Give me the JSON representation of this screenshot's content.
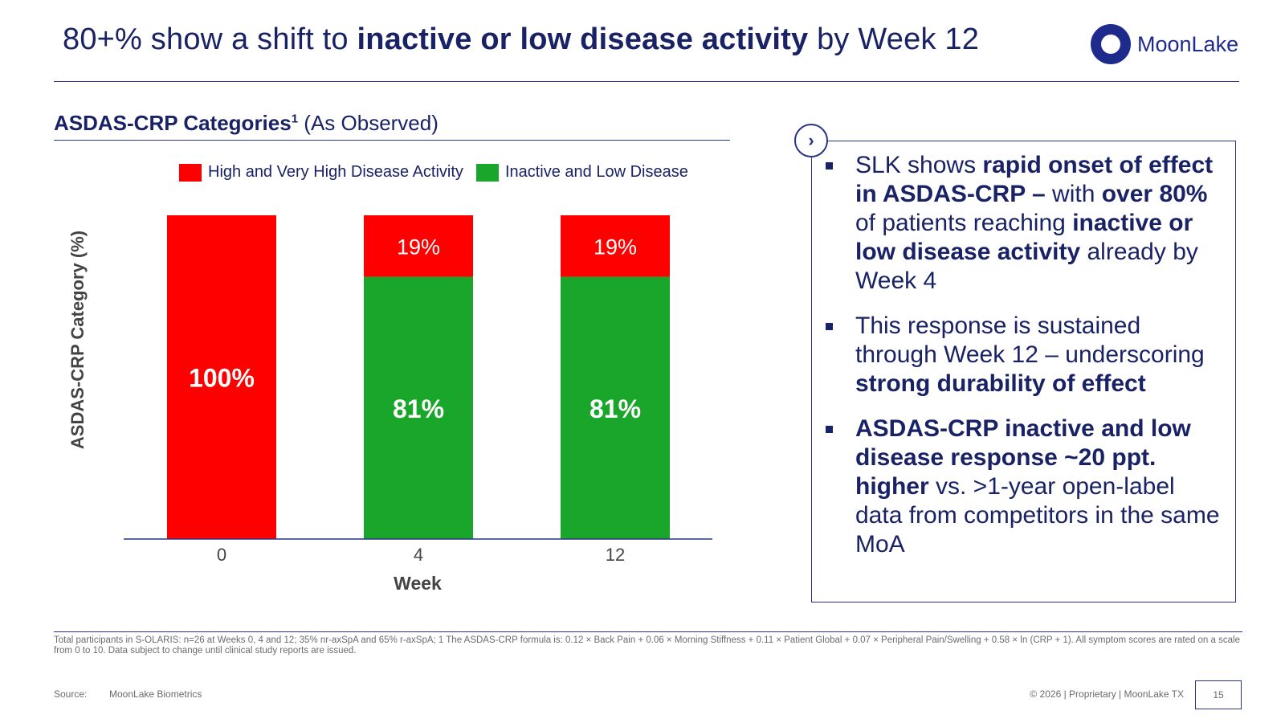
{
  "header": {
    "title_pre": "80+% show a shift to ",
    "title_bold": "inactive or low disease activity",
    "title_post": " by Week 12",
    "logo_text": "MoonLake",
    "logo_icon": "ring-logo-icon"
  },
  "chart_data": {
    "type": "bar",
    "stacked": true,
    "title": "ASDAS-CRP Categories",
    "title_superscript": "1",
    "subtitle": "(As Observed)",
    "xlabel": "Week",
    "ylabel": "ASDAS-CRP Category (%)",
    "categories": [
      "0",
      "4",
      "12"
    ],
    "ylim": [
      0,
      100
    ],
    "legend_position": "top",
    "series": [
      {
        "name": "Inactive and Low Disease",
        "color": "#1aa52b",
        "values": [
          0,
          81,
          81
        ],
        "labels": [
          "",
          "81%",
          "81%"
        ]
      },
      {
        "name": "High and Very High Disease Activity",
        "color": "#ff0000",
        "values": [
          100,
          19,
          19
        ],
        "labels": [
          "100%",
          "19%",
          "19%"
        ]
      }
    ]
  },
  "callout": {
    "icon": "chevron-right-icon",
    "bullets": [
      [
        {
          "t": "SLK shows ",
          "b": false
        },
        {
          "t": "rapid onset of effect in ASDAS-CRP – ",
          "b": true
        },
        {
          "t": "with ",
          "b": false
        },
        {
          "t": "over 80%",
          "b": true
        },
        {
          "t": " of patients reaching ",
          "b": false
        },
        {
          "t": "inactive or low disease activity",
          "b": true
        },
        {
          "t": " already by Week 4",
          "b": false
        }
      ],
      [
        {
          "t": "This response is sustained through Week 12 – underscoring ",
          "b": false
        },
        {
          "t": "strong durability of effect",
          "b": true
        }
      ],
      [
        {
          "t": "ASDAS-CRP inactive and low disease response ~20 ppt. higher",
          "b": true
        },
        {
          "t": " vs. >1-year open-label data from competitors in the same MoA",
          "b": false
        }
      ]
    ]
  },
  "footer": {
    "footnote": "Total participants in S-OLARIS: n=26 at Weeks 0, 4 and 12; 35% nr-axSpA and 65% r-axSpA; 1 The ASDAS-CRP formula is: 0.12 × Back Pain + 0.06 × Morning Stiffness + 0.11 × Patient Global + 0.07 × Peripheral Pain/Swelling + 0.58 × ln (CRP + 1). All symptom scores are rated on a scale from 0 to 10. Data subject to change until clinical study reports are issued.",
    "source_label": "Source:",
    "source_value": "MoonLake Biometrics",
    "copyright": "© 2026 | Proprietary | MoonLake TX",
    "page_number": "15"
  }
}
